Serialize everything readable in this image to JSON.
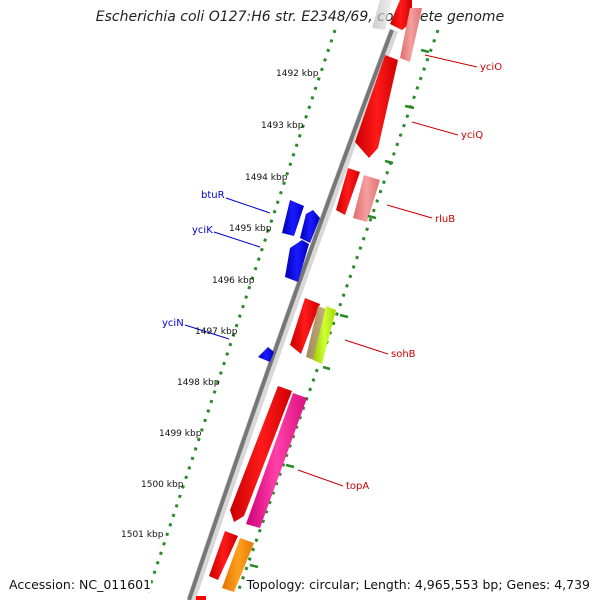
{
  "title": "Escherichia coli O127:H6 str. E2348/69, complete genome",
  "accession": "Accession: NC_011601",
  "topology": "Topology: circular; Length: 4,965,553 bp; Genes: 4,739",
  "colors": {
    "forward_gene": "#ff0000",
    "reverse_gene": "#0000ff",
    "label_forward": "#cc0000",
    "label_reverse": "#0000cc",
    "tick": "#2a8a2a",
    "backbone": "#7a7a7a"
  },
  "kbp_ticks": [
    {
      "label": "1492 kbp"
    },
    {
      "label": "1493 kbp"
    },
    {
      "label": "1494 kbp"
    },
    {
      "label": "1495 kbp"
    },
    {
      "label": "1496 kbp"
    },
    {
      "label": "1497 kbp"
    },
    {
      "label": "1498 kbp"
    },
    {
      "label": "1499 kbp"
    },
    {
      "label": "1500 kbp"
    },
    {
      "label": "1501 kbp"
    }
  ],
  "gene_labels_forward": [
    "yciO",
    "yciQ",
    "rluB",
    "sohB",
    "topA"
  ],
  "gene_labels_reverse": [
    "btuR",
    "yciK",
    "yciN"
  ]
}
